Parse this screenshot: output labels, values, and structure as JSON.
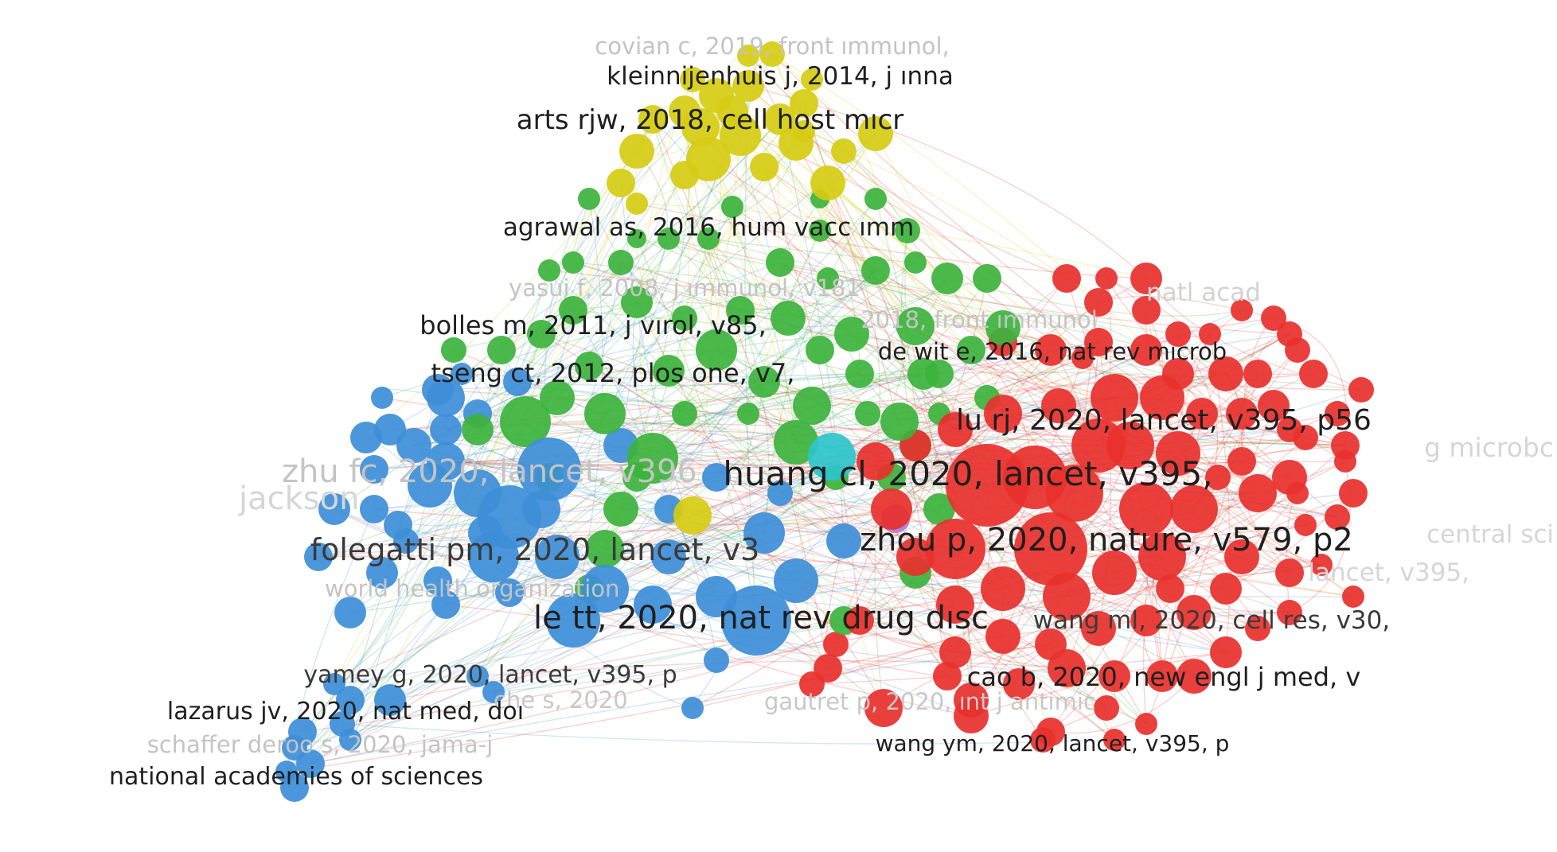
{
  "colors": {
    "background": "#ffffff",
    "yellow": "#d6cc12",
    "green": "#3cb33c",
    "blue": "#3d8ed8",
    "red": "#e8302c",
    "cyan": "#2ec4cc",
    "purple": "#b07ad8",
    "label_strong": "#1f1f1f",
    "label_faint": "#c4c4c4"
  },
  "clusters": [
    {
      "name": "yellow",
      "color": "#d6cc12"
    },
    {
      "name": "green",
      "color": "#3cb33c"
    },
    {
      "name": "blue",
      "color": "#3d8ed8"
    },
    {
      "name": "red",
      "color": "#e8302c"
    },
    {
      "name": "cyan",
      "color": "#2ec4cc"
    },
    {
      "name": "purple",
      "color": "#b07ad8"
    }
  ],
  "labels": {
    "covian": "covian c, 2019, front ımmunol,",
    "kleinnijenhuis": "kleinnijenhuis j, 2014, j ınna",
    "arts": "arts rjw, 2018, cell host mıcr",
    "agrawal": "agrawal as, 2016, hum vacc ımm",
    "yasui": "yasui f, 2008, j ımmunol, v181",
    "natl_acad": "natl acad",
    "bolles": "bolles m, 2011, j vırol, v85,",
    "front_ımmunol": "2018, front ımmunol",
    "de_wit": "de wit e, 2016, nat rev mıcrob",
    "tseng": "tseng ct, 2012, plos one, v7,",
    "lu": "lu rj, 2020, lancet, v395, p56",
    "huang": "huang cl, 2020, lancet, v395,",
    "zhu": "zhu fc, 2020, lancet, v396",
    "jackson": "jackson",
    "microb": "g microbc",
    "central_sci": "central sci",
    "folegatti": "folegatti pm, 2020, lancet, v3",
    "zhou": "zhou p, 2020, nature, v579, p2",
    "lancet_v395": "lancet, v395,",
    "world_health": "world health organization",
    "le_tt": "le tt, 2020, nat rev drug dısc",
    "wang_ml": "wang ml, 2020, cell res, v30,",
    "yamey": "yamey g, 2020, lancet, v395, p",
    "cao": "cao b, 2020, new engl j med, v",
    "lazarus": "lazarus jv, 2020, nat med, doı",
    "che": "che s, 2020",
    "gautret": "gautret p, 2020, ınt j antimic",
    "schaffer": "schaffer deroo s, 2020, jama-j",
    "wang_ym": "wang ym, 2020, lancet, v395, p",
    "national_academies": "national academies of sciences"
  }
}
